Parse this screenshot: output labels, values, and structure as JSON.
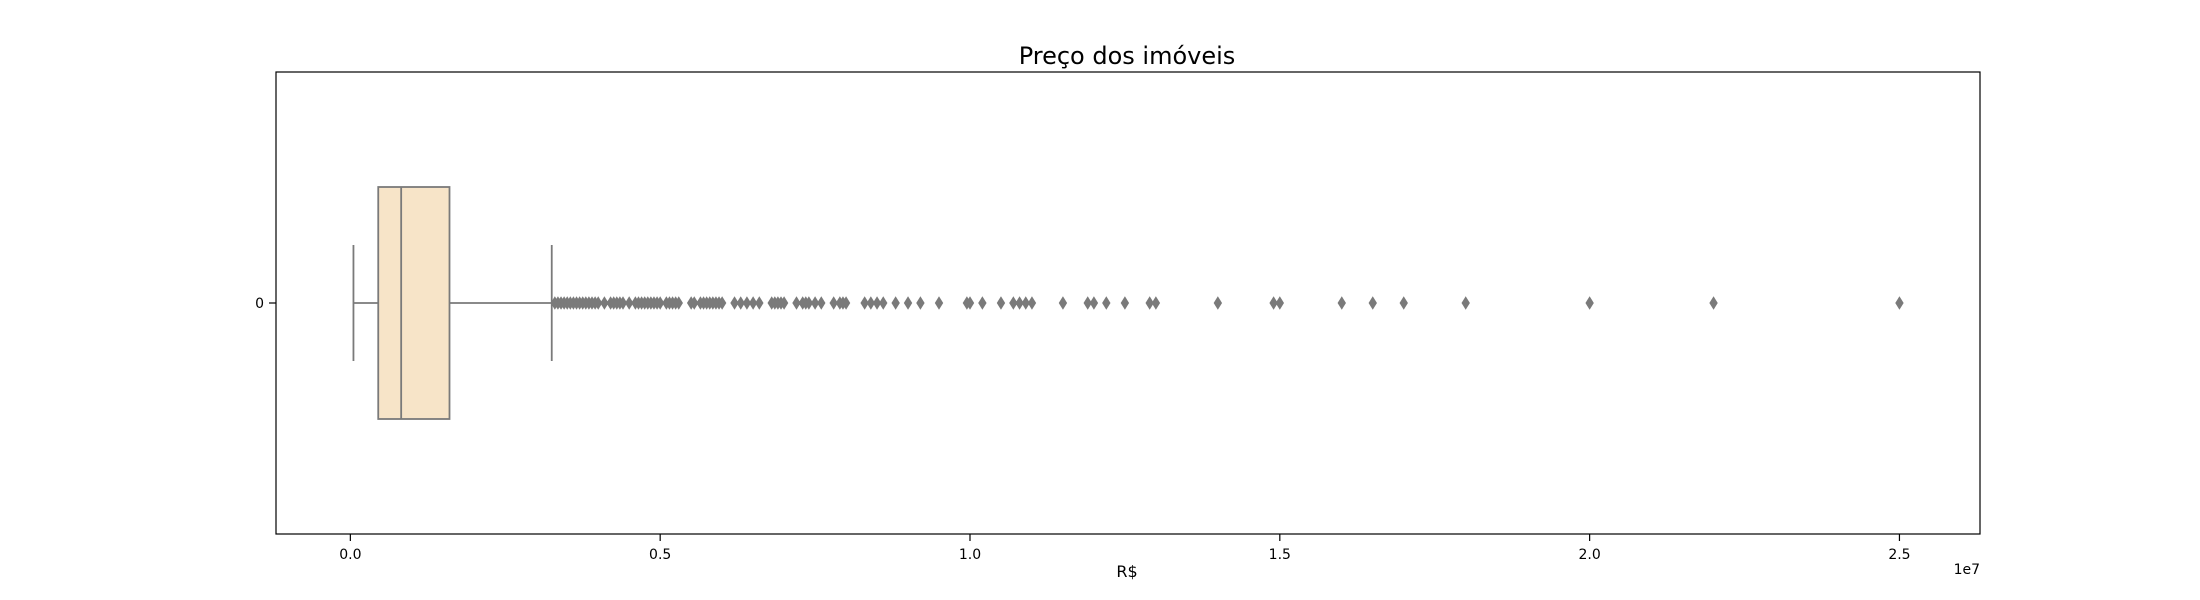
{
  "chart_data": {
    "type": "box",
    "title": "Preço dos imóveis",
    "xlabel": "R$",
    "ylabel": "",
    "x_offset_label": "1e7",
    "xlim": [
      -1200000,
      26300000
    ],
    "xticks": [
      0,
      5000000,
      10000000,
      15000000,
      20000000,
      25000000
    ],
    "xtick_labels": [
      "0.0",
      "0.5",
      "1.0",
      "1.5",
      "2.0",
      "2.5"
    ],
    "categories": [
      "0"
    ],
    "box": {
      "whisker_low": 50000,
      "q1": 450000,
      "median": 820000,
      "q3": 1600000,
      "whisker_high": 3250000
    },
    "outliers": [
      3300000,
      3350000,
      3400000,
      3450000,
      3500000,
      3550000,
      3600000,
      3650000,
      3700000,
      3750000,
      3800000,
      3850000,
      3900000,
      3950000,
      4000000,
      4100000,
      4200000,
      4250000,
      4300000,
      4350000,
      4400000,
      4500000,
      4600000,
      4650000,
      4700000,
      4750000,
      4800000,
      4850000,
      4900000,
      4950000,
      5000000,
      5100000,
      5150000,
      5200000,
      5250000,
      5300000,
      5500000,
      5550000,
      5650000,
      5700000,
      5750000,
      5800000,
      5850000,
      5900000,
      5950000,
      6000000,
      6200000,
      6300000,
      6400000,
      6500000,
      6600000,
      6800000,
      6850000,
      6900000,
      6950000,
      7000000,
      7200000,
      7300000,
      7350000,
      7400000,
      7500000,
      7600000,
      7800000,
      7900000,
      7950000,
      8000000,
      8300000,
      8400000,
      8500000,
      8600000,
      8800000,
      9000000,
      9200000,
      9500000,
      9950000,
      10000000,
      10200000,
      10500000,
      10700000,
      10800000,
      10900000,
      11000000,
      11500000,
      11900000,
      12000000,
      12200000,
      12500000,
      12900000,
      13000000,
      14000000,
      14900000,
      15000000,
      16000000,
      16500000,
      17000000,
      18000000,
      20000000,
      22000000,
      25000000
    ],
    "colors": {
      "box_fill": "#f7e4c8",
      "lines": "#7a7a7a",
      "outlier": "#7a7a7a",
      "axes": "#000000"
    },
    "grid": false
  }
}
